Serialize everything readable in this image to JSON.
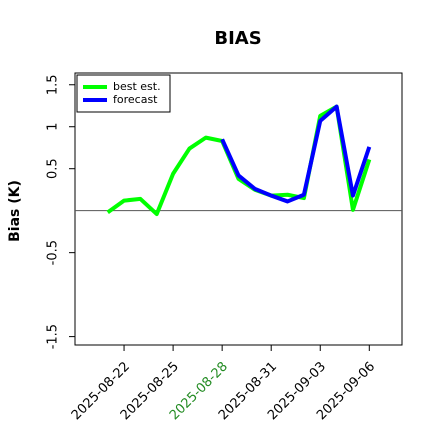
{
  "chart_data": {
    "type": "line",
    "title": "BIAS",
    "y_label": "Bias (K)",
    "x": [
      "2025-08-21",
      "2025-08-22",
      "2025-08-23",
      "2025-08-24",
      "2025-08-25",
      "2025-08-26",
      "2025-08-27",
      "2025-08-28",
      "2025-08-29",
      "2025-08-30",
      "2025-08-31",
      "2025-09-01",
      "2025-09-02",
      "2025-09-03",
      "2025-09-04",
      "2025-09-05",
      "2025-09-06"
    ],
    "series": [
      {
        "name": "best est.",
        "color": "#00ff00",
        "values": [
          -0.02,
          0.12,
          0.14,
          -0.04,
          0.44,
          0.74,
          0.87,
          0.83,
          0.38,
          0.25,
          0.18,
          0.19,
          0.15,
          1.13,
          1.24,
          0.01,
          0.61
        ]
      },
      {
        "name": "forecast",
        "color": "#0000ff",
        "values": [
          null,
          null,
          null,
          null,
          null,
          null,
          null,
          0.85,
          0.42,
          0.26,
          0.18,
          0.11,
          0.19,
          1.07,
          1.24,
          0.18,
          0.76
        ]
      }
    ],
    "xlim": [
      "2025-08-19",
      "2025-09-08"
    ],
    "xticks": [
      "2025-08-22",
      "2025-08-25",
      "2025-08-28",
      "2025-08-31",
      "2025-09-03",
      "2025-09-06"
    ],
    "xtick_colors": [
      "#000000",
      "#000000",
      "#228b22",
      "#000000",
      "#000000",
      "#000000"
    ],
    "ylim": [
      -1.6,
      1.64
    ],
    "yticks": [
      -1.5,
      -0.5,
      0.5,
      1.0,
      1.5
    ],
    "hline": 0,
    "legend": "upper-left"
  }
}
